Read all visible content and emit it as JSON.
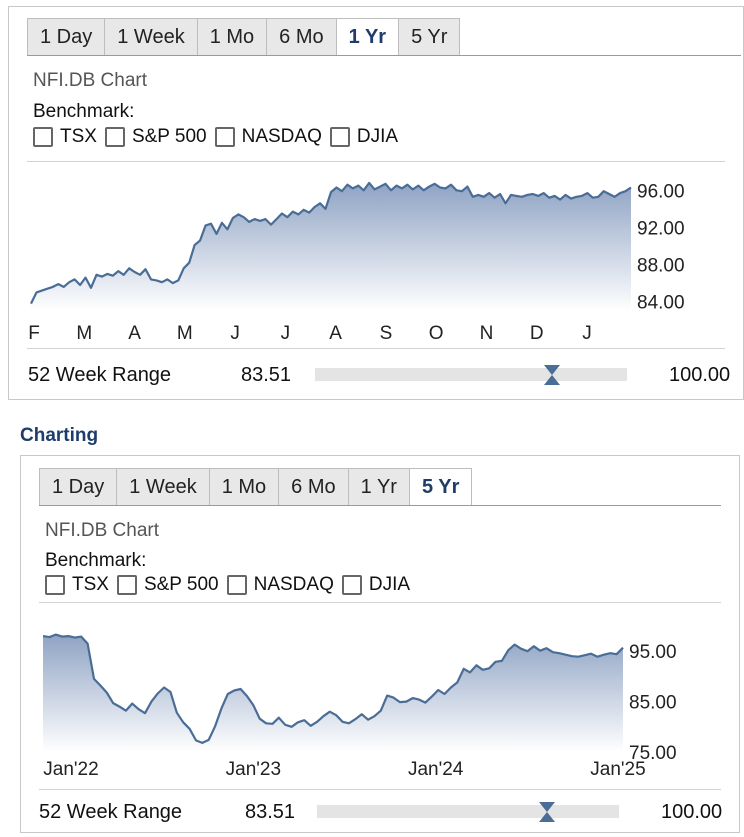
{
  "panel1": {
    "tabs": [
      "1 Day",
      "1 Week",
      "1 Mo",
      "6 Mo",
      "1 Yr",
      "5 Yr"
    ],
    "active_tab": "1 Yr",
    "chart_title": "NFI.DB Chart",
    "benchmark_label": "Benchmark:",
    "benchmarks": [
      "TSX",
      "S&P 500",
      "NASDAQ",
      "DJIA"
    ],
    "range_label": "52 Week Range",
    "range_low": "83.51",
    "range_high": "100.00",
    "range_marker_fraction": 0.76
  },
  "section_heading": "Charting",
  "panel2": {
    "tabs": [
      "1 Day",
      "1 Week",
      "1 Mo",
      "6 Mo",
      "1 Yr",
      "5 Yr"
    ],
    "active_tab": "5 Yr",
    "chart_title": "NFI.DB Chart",
    "benchmark_label": "Benchmark:",
    "benchmarks": [
      "TSX",
      "S&P 500",
      "NASDAQ",
      "DJIA"
    ],
    "range_label": "52 Week Range",
    "range_low": "83.51",
    "range_high": "100.00",
    "range_marker_fraction": 0.76
  },
  "colors": {
    "line": "#4a6d96",
    "fill_top": "#8fa3c4",
    "fill_bottom": "#ffffff",
    "active_tab_text": "#1f3d6b"
  },
  "chart_data": [
    {
      "type": "area",
      "x_labels": [
        "F",
        "M",
        "A",
        "M",
        "J",
        "J",
        "A",
        "S",
        "O",
        "N",
        "D",
        "J"
      ],
      "y_ticks": [
        "84.00",
        "88.00",
        "92.00",
        "96.00"
      ],
      "ylim": [
        83.0,
        97.0
      ],
      "y_axis_position": "right",
      "grid": false,
      "values": [
        83.8,
        85.0,
        85.2,
        85.4,
        85.6,
        85.9,
        85.6,
        86.1,
        86.4,
        85.8,
        86.6,
        85.5,
        86.9,
        86.7,
        87.0,
        86.8,
        87.3,
        86.9,
        87.6,
        87.2,
        86.9,
        87.5,
        86.4,
        86.3,
        86.1,
        86.4,
        86.0,
        86.3,
        87.6,
        88.2,
        90.1,
        90.6,
        92.2,
        92.4,
        91.3,
        92.5,
        91.8,
        93.0,
        93.4,
        93.1,
        92.6,
        92.9,
        92.7,
        92.9,
        92.3,
        92.9,
        93.5,
        93.1,
        93.7,
        93.4,
        93.9,
        93.6,
        94.2,
        94.6,
        94.0,
        95.8,
        96.3,
        95.9,
        96.6,
        96.2,
        96.5,
        96.0,
        96.8,
        96.1,
        96.4,
        96.7,
        96.0,
        96.5,
        96.2,
        96.6,
        96.1,
        96.5,
        96.0,
        96.4,
        96.7,
        96.3,
        96.2,
        96.6,
        96.0,
        95.9,
        96.4,
        95.3,
        95.5,
        95.3,
        95.7,
        95.2,
        95.6,
        94.6,
        95.5,
        95.4,
        95.3,
        95.5,
        95.6,
        95.4,
        95.7,
        95.2,
        95.4,
        95.0,
        95.5,
        95.1,
        95.3,
        95.4,
        95.7,
        95.2,
        95.3,
        95.9,
        95.6,
        95.3,
        95.7,
        95.9,
        96.3
      ]
    },
    {
      "type": "area",
      "x_labels": [
        "Jan'22",
        "Jan'23",
        "Jan'24",
        "Jan'25"
      ],
      "y_ticks": [
        "75.00",
        "85.00",
        "95.00"
      ],
      "ylim": [
        75.0,
        100.0
      ],
      "y_axis_position": "right",
      "grid": false,
      "values": [
        98.0,
        97.8,
        98.3,
        97.9,
        98.0,
        97.7,
        97.9,
        96.5,
        89.5,
        88.2,
        86.8,
        84.7,
        84.0,
        83.2,
        84.6,
        83.5,
        82.7,
        85.0,
        86.6,
        87.8,
        86.9,
        82.8,
        80.9,
        79.6,
        77.3,
        76.8,
        77.4,
        80.1,
        83.7,
        86.5,
        87.2,
        87.5,
        86.1,
        84.3,
        81.6,
        80.7,
        80.6,
        81.8,
        80.4,
        80.0,
        80.9,
        81.3,
        80.2,
        81.0,
        82.1,
        83.0,
        82.3,
        81.0,
        80.7,
        81.5,
        82.5,
        81.4,
        82.1,
        83.2,
        86.2,
        85.8,
        84.9,
        85.0,
        85.7,
        85.4,
        84.8,
        86.0,
        87.3,
        86.5,
        87.8,
        88.8,
        91.5,
        90.8,
        92.2,
        91.3,
        91.6,
        92.9,
        93.1,
        95.2,
        96.3,
        95.5,
        95.0,
        96.0,
        95.1,
        95.6,
        94.8,
        94.6,
        94.3,
        94.0,
        93.9,
        94.2,
        94.5,
        93.9,
        94.3,
        94.6,
        94.4,
        95.7
      ]
    }
  ]
}
